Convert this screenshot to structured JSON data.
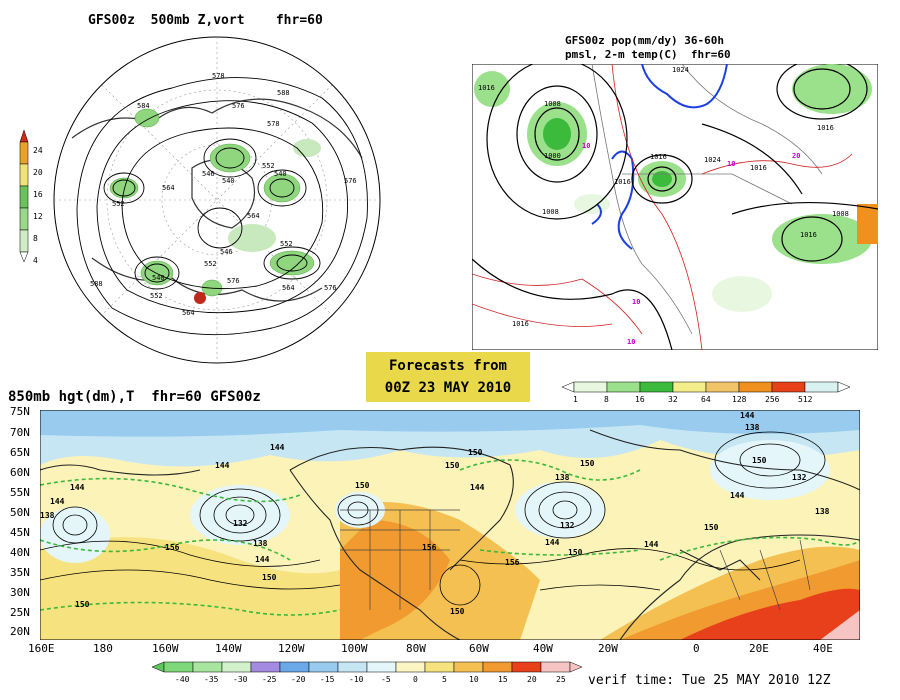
{
  "panel_500mb": {
    "title": "GFS00z  500mb Z,vort    fhr=60",
    "scale_ticks": [
      "24",
      "20",
      "16",
      "12",
      "8",
      "4"
    ],
    "scale_colors": [
      "#d12a1a",
      "#e8a22a",
      "#f2e27a",
      "#6cc25c",
      "#9bd98a",
      "#cfeec5"
    ],
    "contour_labels": [
      "578",
      "584",
      "588",
      "576",
      "564",
      "552",
      "546",
      "540",
      "540",
      "552",
      "564",
      "576",
      "552",
      "552",
      "540",
      "546",
      "588",
      "552",
      "564",
      "576",
      "576",
      "564",
      "578"
    ]
  },
  "panel_pop": {
    "title_line1": "GFS00z pop(mm/dy) 36-60h",
    "title_line2": "pmsl, 2-m temp(C)  fhr=60",
    "labels": [
      "1016",
      "1008",
      "1000",
      "1008",
      "1016",
      "1024",
      "1016",
      "1016",
      "1008",
      "1016",
      "1016",
      "1016",
      "1024",
      "10",
      "10",
      "10",
      "10",
      "20"
    ],
    "scale_ticks": [
      "1",
      "8",
      "16",
      "32",
      "64",
      "128",
      "256",
      "512"
    ],
    "scale_colors": [
      "#e8f8e0",
      "#9be08a",
      "#3cba3c",
      "#f4ee8a",
      "#f2c46a",
      "#f0901e",
      "#e84018",
      "#d8f2f2"
    ]
  },
  "forecast_box": {
    "line1": "Forecasts from",
    "line2": "00Z 23 MAY 2010"
  },
  "panel_850": {
    "title": "850mb hgt(dm),T  fhr=60 GFS00z",
    "lat_labels": [
      "75N",
      "70N",
      "65N",
      "60N",
      "55N",
      "50N",
      "45N",
      "40N",
      "35N",
      "30N",
      "25N",
      "20N"
    ],
    "lon_labels": [
      "160E",
      "180",
      "160W",
      "140W",
      "120W",
      "100W",
      "80W",
      "60W",
      "40W",
      "20W",
      "0",
      "20E",
      "40E"
    ],
    "contour_labels": [
      "144",
      "144",
      "144",
      "150",
      "138",
      "132",
      "138",
      "144",
      "150",
      "156",
      "150",
      "156",
      "144",
      "150",
      "150",
      "138",
      "132",
      "144",
      "150",
      "156",
      "144",
      "150",
      "150",
      "144",
      "138",
      "132",
      "150",
      "144",
      "138",
      "144",
      "150"
    ],
    "scale_ticks": [
      "-40",
      "-35",
      "-30",
      "-25",
      "-20",
      "-15",
      "-10",
      "-5",
      "0",
      "5",
      "10",
      "15",
      "20",
      "25"
    ],
    "scale_colors": [
      "#5cc85c",
      "#7ed87a",
      "#a8e6a0",
      "#d2f2cc",
      "#a48ae0",
      "#6aa8e8",
      "#98cbee",
      "#c6e6f4",
      "#e4f6fa",
      "#fbf5c4",
      "#f6e27e",
      "#f5c052",
      "#f09a30",
      "#e8401a",
      "#f7c4c4"
    ]
  },
  "verif_time": "verif time: Tue 25 MAY 2010 12Z"
}
